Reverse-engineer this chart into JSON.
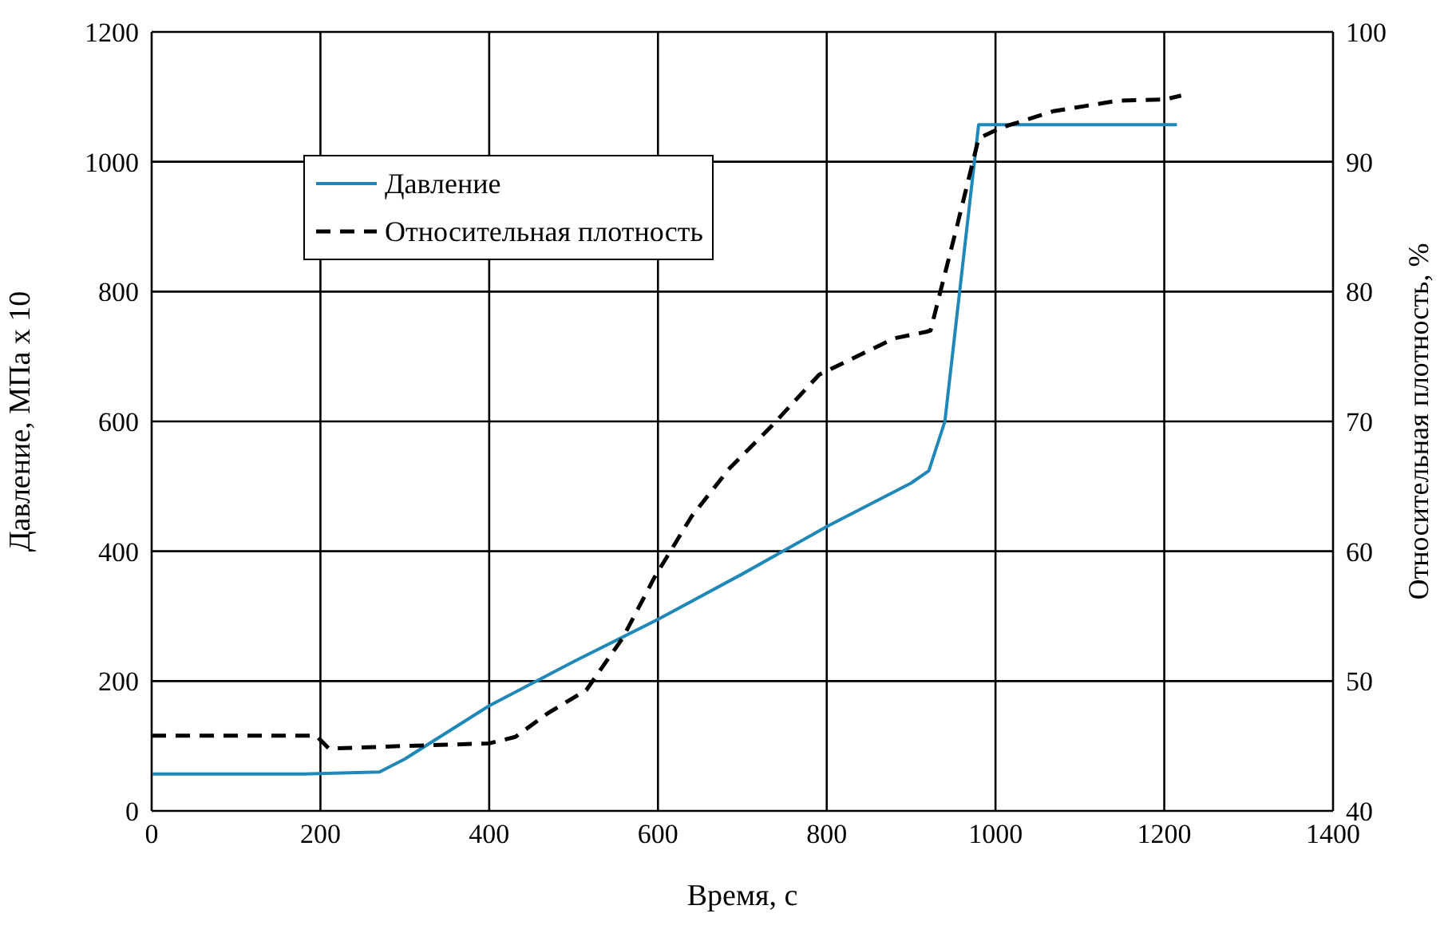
{
  "chart_data": {
    "type": "line",
    "xlabel": "Время, с",
    "ylabel": "Давление, МПа x 10",
    "y2label": "Относительная плотность, %",
    "series": [
      {
        "name": "Давление",
        "color": "#1f88b8",
        "line_style": "solid",
        "x": [
          0,
          180,
          270,
          300,
          400,
          500,
          600,
          700,
          800,
          900,
          921,
          940,
          980,
          1215
        ],
        "values": [
          57,
          57,
          60,
          80,
          162,
          230,
          295,
          365,
          438,
          505,
          524,
          600,
          1057,
          1057
        ]
      },
      {
        "name": "Относительная плотность",
        "color": "#000000",
        "line_style": "dashed",
        "axis": "y2",
        "x": [
          0,
          195,
          210,
          300,
          400,
          431,
          469,
          515,
          558,
          596,
          640,
          685,
          734,
          791,
          880,
          918,
          923,
          955,
          980,
          1006,
          1069,
          1145,
          1201,
          1220
        ],
        "values": [
          45.8,
          45.8,
          44.8,
          45,
          45.2,
          45.7,
          47.5,
          49.3,
          53.3,
          58,
          62.7,
          66.4,
          69.6,
          73.6,
          76.4,
          76.9,
          77,
          85.2,
          91.8,
          92.6,
          93.9,
          94.7,
          94.8,
          95.1
        ]
      }
    ],
    "xlim": [
      0,
      1400
    ],
    "xticks": [
      0,
      200,
      400,
      600,
      800,
      1000,
      1200,
      1400
    ],
    "ylim": [
      0,
      1200
    ],
    "yticks": [
      0,
      200,
      400,
      600,
      800,
      1000,
      1200
    ],
    "y2lim": [
      40,
      100
    ],
    "y2ticks": [
      40,
      50,
      60,
      70,
      80,
      90,
      100
    ],
    "grid": true,
    "legend": "top left",
    "marker": "none"
  }
}
